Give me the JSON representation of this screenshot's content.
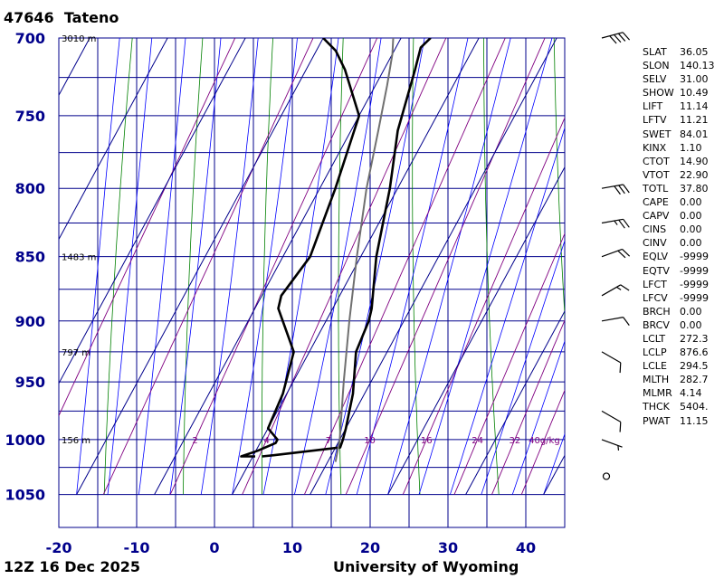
{
  "header": {
    "station_id": "47646",
    "station_name": "Tateno"
  },
  "footer": {
    "date": "12Z 16 Dec 2025",
    "source": "University of Wyoming"
  },
  "chart_data": {
    "type": "line",
    "x_ticks": [
      -20,
      -10,
      0,
      10,
      20,
      30,
      40
    ],
    "y_ticks": [
      700,
      750,
      800,
      850,
      900,
      950,
      1000,
      1050
    ],
    "xlim": [
      -20,
      45
    ],
    "ylim": [
      1050,
      700
    ],
    "height_labels": [
      {
        "p": 700,
        "text": "3010 m"
      },
      {
        "p": 850,
        "text": "1483 m"
      },
      {
        "p": 925,
        "text": "797 m"
      },
      {
        "p": 1000,
        "text": "156 m"
      }
    ],
    "mixing_ratio_labels": [
      {
        "x": 2,
        "text": "2"
      },
      {
        "x": 4,
        "text": "4"
      },
      {
        "x": 7,
        "text": "7"
      },
      {
        "x": 10,
        "text": "10"
      },
      {
        "x": 16,
        "text": "16"
      },
      {
        "x": 24,
        "text": "24"
      },
      {
        "x": 32,
        "text": "32"
      },
      {
        "x": 40,
        "text": "40g/kg"
      }
    ],
    "series": [
      {
        "color": "#000000",
        "points": [
          [
            1.2,
            1015
          ],
          [
            2.6,
            1014
          ],
          [
            10.6,
            1007
          ],
          [
            10.4,
            1000
          ],
          [
            10,
            990
          ],
          [
            8.5,
            960
          ],
          [
            6,
            925
          ],
          [
            5.5,
            900
          ],
          [
            5,
            890
          ],
          [
            2,
            850
          ],
          [
            -1,
            800
          ],
          [
            -4,
            760
          ],
          [
            -6,
            720
          ],
          [
            -6.8,
            706
          ],
          [
            -6.2,
            700
          ]
        ]
      },
      {
        "color": "#000000",
        "points": [
          [
            0.3,
            1015
          ],
          [
            -1.5,
            1015
          ],
          [
            0.2,
            1010
          ],
          [
            2,
            1003
          ],
          [
            2,
            1000
          ],
          [
            0,
            990
          ],
          [
            -0.5,
            960
          ],
          [
            -2,
            925
          ],
          [
            -7,
            890
          ],
          [
            -7.5,
            880
          ],
          [
            -6.5,
            850
          ],
          [
            -8,
            800
          ],
          [
            -10,
            750
          ],
          [
            -15,
            720
          ],
          [
            -17.5,
            708
          ],
          [
            -20,
            700
          ]
        ]
      },
      {
        "color": "#707070",
        "points": [
          [
            11,
            1020
          ],
          [
            10,
            1000
          ],
          [
            6.5,
            950
          ],
          [
            3,
            900
          ],
          [
            -0.5,
            850
          ],
          [
            -4,
            800
          ],
          [
            -6.5,
            760
          ],
          [
            -8.5,
            730
          ],
          [
            -10,
            710
          ],
          [
            -11,
            700
          ]
        ]
      }
    ]
  },
  "indices": [
    {
      "label": "SLAT",
      "value": "36.05"
    },
    {
      "label": "SLON",
      "value": "140.13"
    },
    {
      "label": "SELV",
      "value": "31.00"
    },
    {
      "label": "SHOW",
      "value": "10.49"
    },
    {
      "label": "LIFT",
      "value": "11.14"
    },
    {
      "label": "LFTV",
      "value": "11.21"
    },
    {
      "label": "SWET",
      "value": "84.01"
    },
    {
      "label": "KINX",
      "value": "1.10"
    },
    {
      "label": "CTOT",
      "value": "14.90"
    },
    {
      "label": "VTOT",
      "value": "22.90"
    },
    {
      "label": "TOTL",
      "value": "37.80"
    },
    {
      "label": "CAPE",
      "value": "0.00"
    },
    {
      "label": "CAPV",
      "value": "0.00"
    },
    {
      "label": "CINS",
      "value": "0.00"
    },
    {
      "label": "CINV",
      "value": "0.00"
    },
    {
      "label": "EQLV",
      "value": "-9999"
    },
    {
      "label": "EQTV",
      "value": "-9999"
    },
    {
      "label": "LFCT",
      "value": "-9999"
    },
    {
      "label": "LFCV",
      "value": "-9999"
    },
    {
      "label": "BRCH",
      "value": "0.00"
    },
    {
      "label": "BRCV",
      "value": "0.00"
    },
    {
      "label": "LCLT",
      "value": "272.3"
    },
    {
      "label": "LCLP",
      "value": "876.6"
    },
    {
      "label": "LCLE",
      "value": "294.5"
    },
    {
      "label": "MLTH",
      "value": "282.7"
    },
    {
      "label": "MLMR",
      "value": "4.14"
    },
    {
      "label": "THCK",
      "value": "5404."
    },
    {
      "label": "PWAT",
      "value": "11.15"
    }
  ],
  "wind_barbs": [
    {
      "p": 700,
      "dir": 255,
      "kt": 40
    },
    {
      "p": 800,
      "dir": 260,
      "kt": 30
    },
    {
      "p": 825,
      "dir": 260,
      "kt": 25
    },
    {
      "p": 850,
      "dir": 250,
      "kt": 20
    },
    {
      "p": 880,
      "dir": 240,
      "kt": 15
    },
    {
      "p": 900,
      "dir": 260,
      "kt": 10
    },
    {
      "p": 925,
      "dir": 300,
      "kt": 10
    },
    {
      "p": 975,
      "dir": 300,
      "kt": 10
    },
    {
      "p": 1000,
      "dir": 290,
      "kt": 5
    },
    {
      "p": 1015,
      "dir": 0,
      "kt": 0
    }
  ],
  "colors": {
    "grid": "#00008b",
    "tick_label": "#00008b",
    "mixing_ratio": "#800080",
    "dry_adiabat": "#008000",
    "moist_adiabat": "#0000ff",
    "isotherm": "#00008b",
    "dewpoint": "#000000",
    "temperature": "#000000",
    "parcel": "#707070"
  }
}
